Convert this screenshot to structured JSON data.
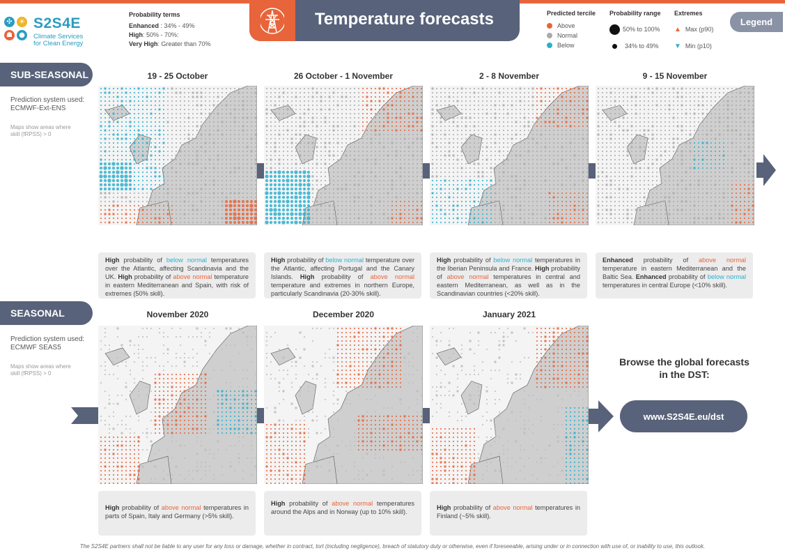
{
  "logo": {
    "title": "S2S4E",
    "subtitle_lines": [
      "Climate Services",
      "for Clean Energy"
    ]
  },
  "probability_terms": {
    "heading": "Probability terms",
    "rows": [
      {
        "label": "Enhanced",
        "text": " : 34% - 49%"
      },
      {
        "label": "High",
        "text": ": 50% - 70%:"
      },
      {
        "label": "Very High",
        "text": ": Greater  than 70%"
      }
    ]
  },
  "banner": {
    "title": "Temperature forecasts",
    "icon": "power-pylon-icon"
  },
  "legend": {
    "tercile": {
      "heading": "Predicted tercile",
      "items": [
        {
          "label": "Above",
          "color": "#e8643a"
        },
        {
          "label": "Normal",
          "color": "#aaaaaa"
        },
        {
          "label": "Below",
          "color": "#2ab0cf"
        }
      ]
    },
    "range": {
      "heading": "Probability range",
      "items": [
        {
          "label": "50% to 100%"
        },
        {
          "label": "34% to 49%"
        }
      ]
    },
    "extremes": {
      "heading": "Extremes",
      "items": [
        {
          "label": "Max (p90)",
          "color": "#e8643a"
        },
        {
          "label": "Min (p10)",
          "color": "#2ab0cf"
        }
      ]
    },
    "button_label": "Legend"
  },
  "subseasonal": {
    "tab": "SUB-SEASONAL",
    "system_lines": [
      "Prediction system used:",
      "ECMWF-Ext-ENS"
    ],
    "note_lines": [
      "Maps show areas where",
      "skill (fRPSS) > 0"
    ],
    "columns": [
      {
        "title": "19 - 25 October",
        "pattern": 0
      },
      {
        "title": "26 October - 1 November",
        "pattern": 1
      },
      {
        "title": "2 - 8 November",
        "pattern": 2
      },
      {
        "title": "9 - 15 November",
        "pattern": 3
      }
    ],
    "captions": [
      [
        {
          "t": "High",
          "s": "b"
        },
        {
          "t": " probability of ",
          "s": ""
        },
        {
          "t": "below normal",
          "s": "c"
        },
        {
          "t": " temperatures over the Atlantic, affecting Scandinavia and the UK. ",
          "s": ""
        },
        {
          "t": "High",
          "s": "b"
        },
        {
          "t": " probability of ",
          "s": ""
        },
        {
          "t": "above normal",
          "s": "o"
        },
        {
          "t": " temperature in eastern Mediterranean and Spain, with risk of extremes (50% skill).",
          "s": ""
        }
      ],
      [
        {
          "t": "High",
          "s": "b"
        },
        {
          "t": " probability of ",
          "s": ""
        },
        {
          "t": "below normal",
          "s": "c"
        },
        {
          "t": " temperature over the Atlantic, affecting Portugal and the Canary Islands. ",
          "s": ""
        },
        {
          "t": "High",
          "s": "b"
        },
        {
          "t": " probability of ",
          "s": ""
        },
        {
          "t": "above normal",
          "s": "o"
        },
        {
          "t": " temperature and extremes in northern Europe, particularly Scandinavia (20-30% skill).",
          "s": ""
        }
      ],
      [
        {
          "t": "High",
          "s": "b"
        },
        {
          "t": " probability of ",
          "s": ""
        },
        {
          "t": "below normal",
          "s": "c"
        },
        {
          "t": " temperatures in the Iberian Peninsula and France. ",
          "s": ""
        },
        {
          "t": "High",
          "s": "b"
        },
        {
          "t": " probability of ",
          "s": ""
        },
        {
          "t": "above normal",
          "s": "o"
        },
        {
          "t": " temperatures in central and eastern Mediterranean, as well as in the Scandinavian countries (<20% skill).",
          "s": ""
        }
      ],
      [
        {
          "t": "Enhanced",
          "s": "b"
        },
        {
          "t": " probability of ",
          "s": ""
        },
        {
          "t": "above normal",
          "s": "o"
        },
        {
          "t": " temperature in eastern Mediterranean and the Baltic Sea. ",
          "s": ""
        },
        {
          "t": "Enhanced",
          "s": "b"
        },
        {
          "t": " probability of ",
          "s": ""
        },
        {
          "t": "below normal",
          "s": "c"
        },
        {
          "t": " temperatures in central Europe (<10% skill).",
          "s": ""
        }
      ]
    ]
  },
  "seasonal": {
    "tab": "SEASONAL",
    "system_lines": [
      "Prediction system used:",
      "ECMWF SEAS5"
    ],
    "note_lines": [
      "Maps show areas where",
      "skill (fRPSS) > 0"
    ],
    "columns": [
      {
        "title": "November 2020",
        "pattern": 4
      },
      {
        "title": "December 2020",
        "pattern": 5
      },
      {
        "title": "January 2021",
        "pattern": 6
      }
    ],
    "captions": [
      [
        {
          "t": "High",
          "s": "b"
        },
        {
          "t": " probability of ",
          "s": ""
        },
        {
          "t": "above normal",
          "s": "o"
        },
        {
          "t": " temperatures in parts of Spain, Italy and Germany (>5% skill).",
          "s": ""
        }
      ],
      [
        {
          "t": "High",
          "s": "b"
        },
        {
          "t": " probability of ",
          "s": ""
        },
        {
          "t": "above normal",
          "s": "o"
        },
        {
          "t": " temperatures around the Alps and in Norway (up to 10% skill).",
          "s": ""
        }
      ],
      [
        {
          "t": "High",
          "s": "b"
        },
        {
          "t": " probability of ",
          "s": ""
        },
        {
          "t": "above normal",
          "s": "o"
        },
        {
          "t": " temperatures in Finland (~5% skill).",
          "s": ""
        }
      ]
    ]
  },
  "browse": {
    "text": "Browse the global forecasts in the DST:",
    "url": "www.S2S4E.eu/dst"
  },
  "footer": "The S2S4E partners shall not be liable to any user for any loss or damage, whether in contract, tort (including negligence), breach of statutory duty or otherwise, even if foreseeable, arising under or in connection with use of, or inability to use, this outlook.",
  "colors": {
    "above": "#e8643a",
    "normal": "#aaaaaa",
    "below": "#2ab0cf",
    "accent": "#58627a"
  }
}
